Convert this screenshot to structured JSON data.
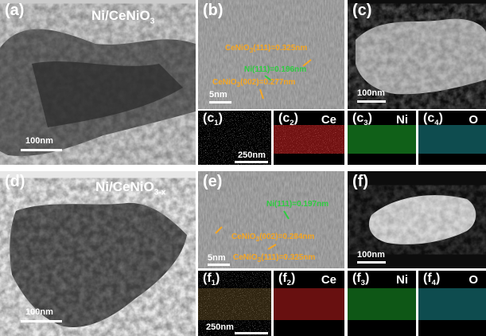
{
  "top_row": {
    "a": {
      "label": "(a)",
      "title": "Ni/CeNiO",
      "title_sub": "3",
      "scale": "100nm"
    },
    "b": {
      "label": "(b)",
      "anno1": "CeNiO",
      "anno1_sub": "3",
      "anno1_rest": "(111)=0.325nm",
      "anno2": "Ni(111)=0.196nm",
      "anno3": "CeNiO",
      "anno3_sub": "3",
      "anno3_rest": "(002)=0.277nm",
      "scale": "5nm"
    },
    "c": {
      "label": "(c)",
      "scale": "100nm"
    },
    "c1": {
      "label": "(c",
      "label_sub": "1",
      "label_end": ")",
      "scale": "250nm"
    },
    "c2": {
      "label": "(c",
      "label_sub": "2",
      "label_end": ")",
      "element": "Ce"
    },
    "c3": {
      "label": "(c",
      "label_sub": "3",
      "label_end": ")",
      "element": "Ni"
    },
    "c4": {
      "label": "(c",
      "label_sub": "4",
      "label_end": ")",
      "element": "O"
    }
  },
  "bottom_row": {
    "d": {
      "label": "(d)",
      "title": "Ni/CeNiO",
      "title_sub": "3-x",
      "scale": "100nm"
    },
    "e": {
      "label": "(e)",
      "anno1": "Ni(111)=0.197nm",
      "anno2": "CeNiO",
      "anno2_sub": "3",
      "anno2_rest": "(002)=0.284nm",
      "anno3": "CeNiO",
      "anno3_sub": "3",
      "anno3_rest": "(111)=0.325nm",
      "scale": "5nm"
    },
    "f": {
      "label": "(f)",
      "scale": "100nm"
    },
    "f1": {
      "label": "(f",
      "label_sub": "1",
      "label_end": ")",
      "scale": "250nm"
    },
    "f2": {
      "label": "(f",
      "label_sub": "2",
      "label_end": ")",
      "element": "Ce"
    },
    "f3": {
      "label": "(f",
      "label_sub": "3",
      "label_end": ")",
      "element": "Ni"
    },
    "f4": {
      "label": "(f",
      "label_sub": "4",
      "label_end": ")",
      "element": "O"
    }
  },
  "colors": {
    "annotation": "#f5a623",
    "ni_annotation": "#2ecc40",
    "map_ce": "#d02020",
    "map_ni": "#20c030",
    "map_o": "#20a8b0"
  }
}
